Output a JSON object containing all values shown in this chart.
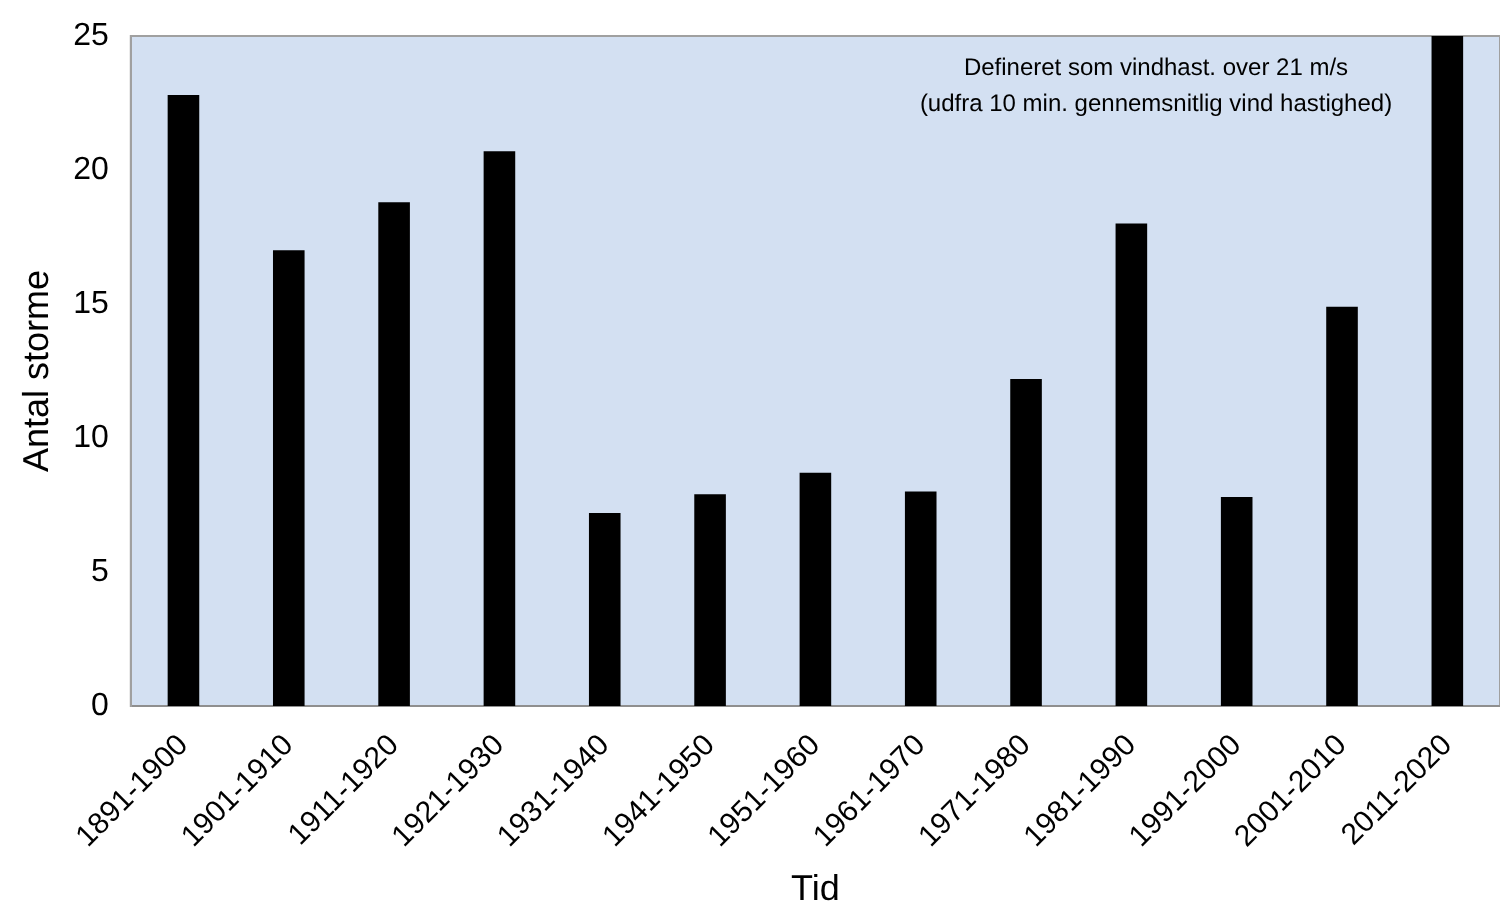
{
  "chart_data": {
    "type": "bar",
    "xlabel": "Tid",
    "ylabel": "Antal storme",
    "categories": [
      "1891-1900",
      "1901-1910",
      "1911-1920",
      "1921-1930",
      "1931-1940",
      "1941-1950",
      "1951-1960",
      "1961-1970",
      "1971-1980",
      "1981-1990",
      "1991-2000",
      "2001-2010",
      "2011-2020"
    ],
    "values": [
      22.8,
      17.0,
      18.8,
      20.7,
      7.2,
      7.9,
      8.7,
      8.0,
      12.2,
      18.0,
      7.8,
      14.9,
      25
    ],
    "color": "#000000",
    "ylim": [
      0,
      25
    ],
    "yticks": [
      0,
      5,
      10,
      15,
      20,
      25
    ],
    "grid": false,
    "legend": false,
    "annotations": [
      "Defineret som vindhast. over 21 m/s",
      "(udfra 10 min. gennemsnitlig vind hastighed)"
    ]
  }
}
